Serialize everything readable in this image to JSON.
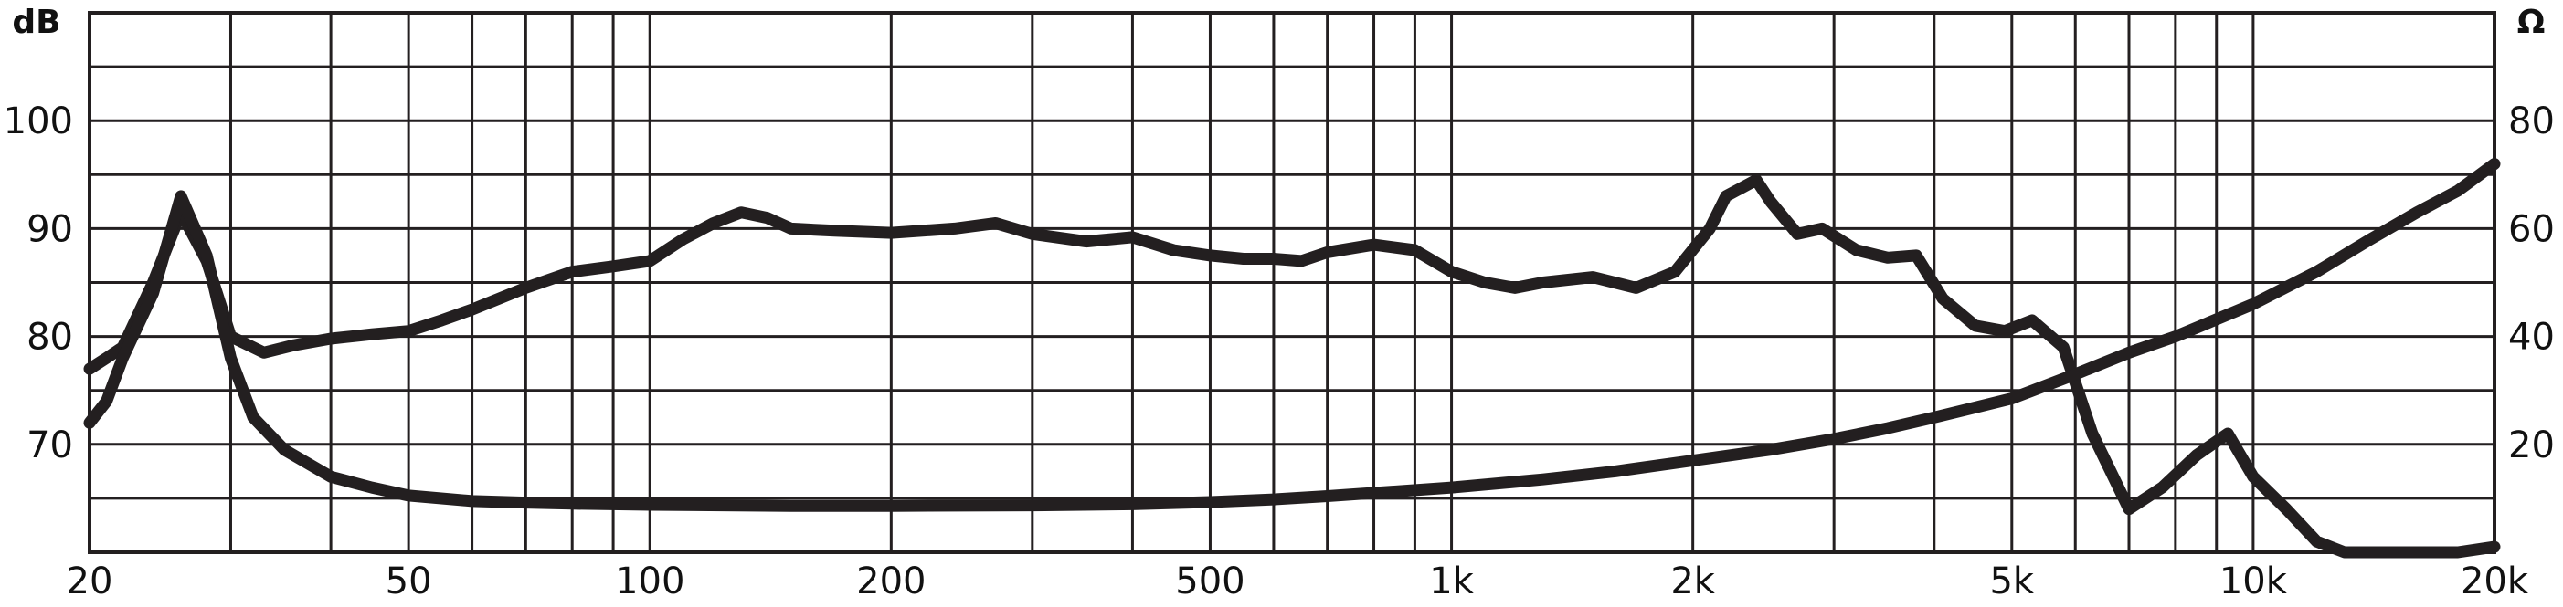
{
  "chart_data": {
    "type": "line",
    "x_scale": "log",
    "xlim": [
      20,
      20000
    ],
    "y_left": {
      "unit": "dB",
      "lim": [
        60,
        110
      ],
      "ticks": [
        70,
        80,
        90,
        100
      ]
    },
    "y_right": {
      "unit": "Ω",
      "lim": [
        0,
        100
      ],
      "ticks": [
        20,
        40,
        60,
        80
      ]
    },
    "x_ticks": [
      20,
      50,
      100,
      200,
      500,
      1000,
      2000,
      5000,
      10000,
      20000
    ],
    "x_tick_labels": [
      "20",
      "50",
      "100",
      "200",
      "500",
      "1k",
      "2k",
      "5k",
      "10k",
      "20k"
    ],
    "grid": true,
    "colors": {
      "line": "#231f20",
      "grid": "#231f20",
      "background": "#ffffff"
    },
    "series": [
      {
        "axis": "left",
        "x": [
          20,
          21,
          22,
          24,
          26,
          28,
          30,
          33,
          36,
          40,
          45,
          50,
          55,
          60,
          70,
          80,
          90,
          100,
          110,
          120,
          130,
          140,
          150,
          170,
          200,
          240,
          270,
          300,
          350,
          400,
          450,
          500,
          550,
          600,
          650,
          700,
          800,
          900,
          1000,
          1100,
          1200,
          1300,
          1500,
          1700,
          1900,
          2100,
          2200,
          2400,
          2500,
          2700,
          2900,
          3200,
          3500,
          3800,
          4100,
          4500,
          4900,
          5300,
          5800,
          6300,
          7000,
          7700,
          8500,
          9300,
          10000,
          11000,
          12000,
          13000,
          14000,
          15000,
          16000,
          18000,
          20000
        ],
        "y": [
          77,
          78,
          79,
          85,
          91.5,
          87,
          80,
          78.5,
          79.2,
          79.8,
          80.2,
          80.5,
          81.5,
          82.5,
          84.5,
          86,
          86.5,
          87,
          89,
          90.5,
          91.5,
          91,
          90,
          89.8,
          89.6,
          90,
          90.5,
          89.5,
          88.8,
          89.2,
          88,
          87.5,
          87.2,
          87.2,
          87,
          87.8,
          88.5,
          88,
          86,
          85,
          84.5,
          85,
          85.5,
          84.5,
          86,
          90,
          93,
          94.5,
          92.5,
          89.5,
          90,
          88,
          87.3,
          87.5,
          83.5,
          81,
          80.5,
          81.5,
          79,
          71,
          64,
          66,
          69,
          71,
          67,
          64,
          61,
          60,
          60,
          60,
          60,
          60,
          60.5
        ]
      },
      {
        "axis": "right",
        "x": [
          20,
          21,
          22,
          24,
          26,
          28,
          30,
          32,
          35,
          40,
          45,
          50,
          60,
          70,
          80,
          100,
          150,
          200,
          300,
          400,
          500,
          600,
          700,
          800,
          1000,
          1300,
          1600,
          2000,
          2500,
          3000,
          3500,
          4000,
          5000,
          6000,
          7000,
          8000,
          10000,
          12000,
          14000,
          16000,
          18000,
          20000
        ],
        "y": [
          24,
          28,
          36,
          48,
          66,
          55,
          36,
          25,
          19,
          14,
          12,
          10.5,
          9.5,
          9.2,
          9,
          8.8,
          8.6,
          8.6,
          8.7,
          8.9,
          9.3,
          9.8,
          10.4,
          11,
          12,
          13.5,
          15,
          17,
          19,
          21,
          23,
          25,
          28.5,
          33,
          37,
          40,
          46,
          52,
          58,
          63,
          67,
          72
        ]
      }
    ]
  }
}
